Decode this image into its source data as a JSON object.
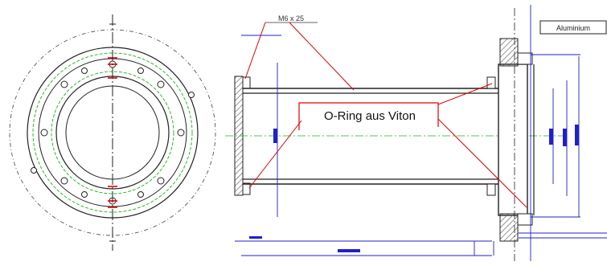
{
  "drawing": {
    "callout_label": "O-Ring aus Viton",
    "top_annotation": "M6 x 25",
    "material_box": "Aluminium",
    "colors": {
      "line": "#1a1a1a",
      "dim_blue": "#2020c8",
      "leader_red": "#e00000",
      "center_green": "#19b319",
      "hatch": "#555555"
    }
  }
}
